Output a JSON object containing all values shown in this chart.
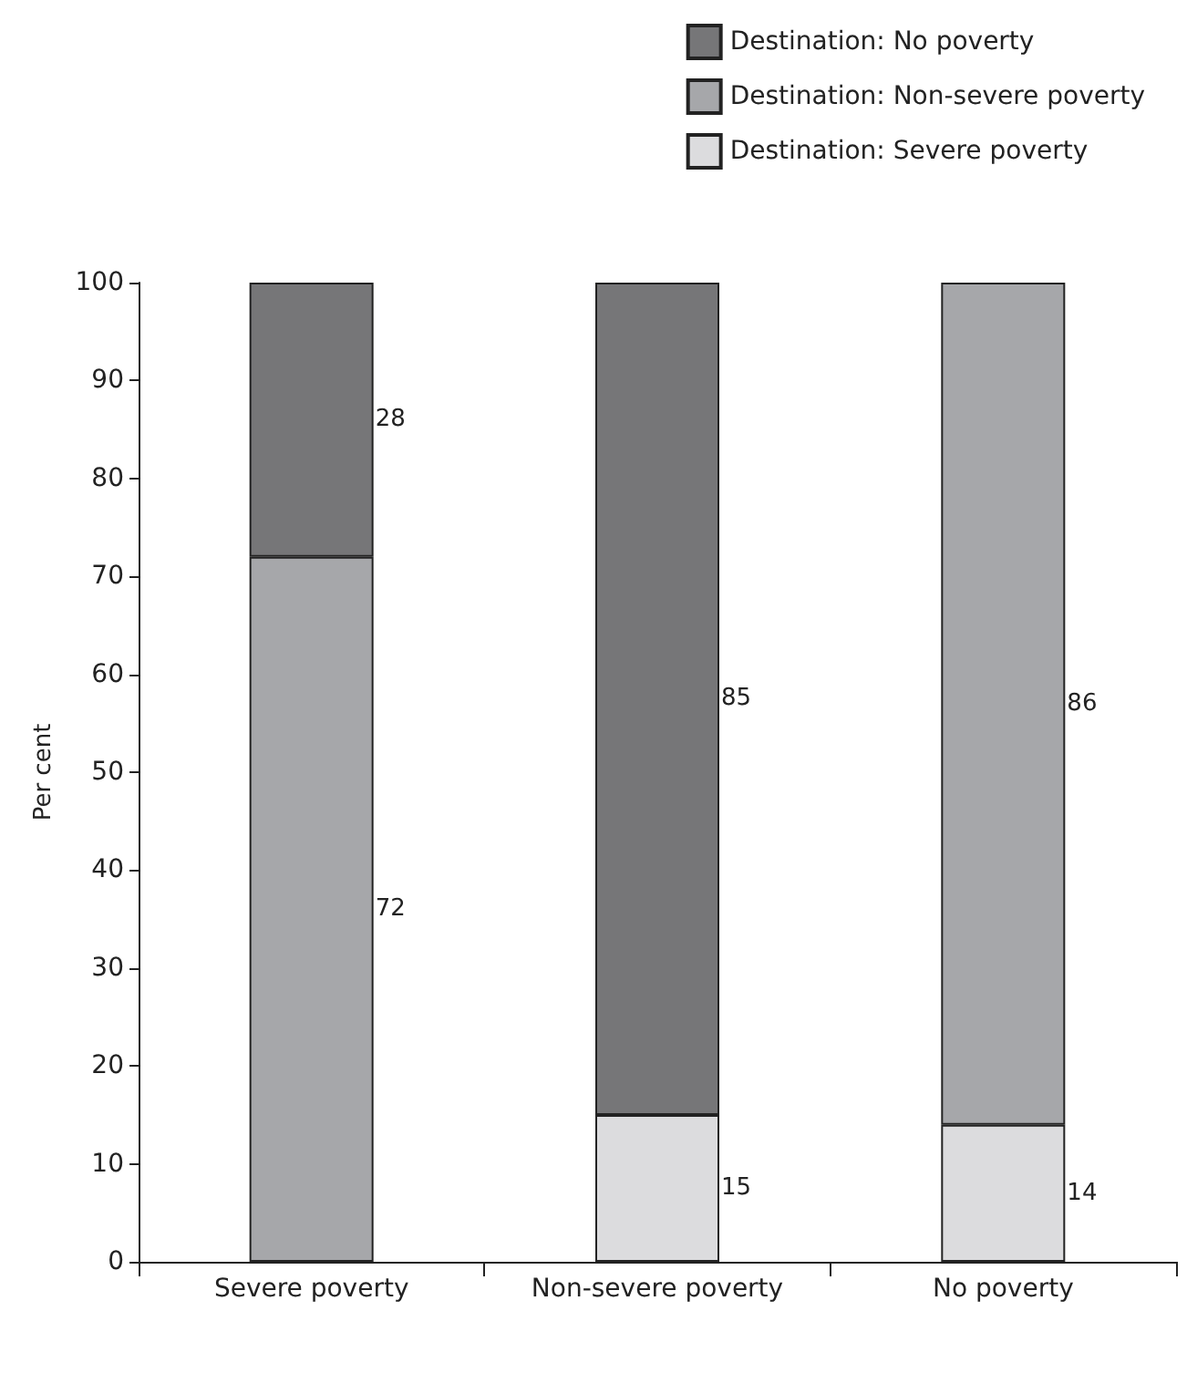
{
  "chart_data": {
    "type": "bar",
    "stacked": true,
    "ylabel": "Per cent",
    "categories": [
      "Severe poverty",
      "Non-severe poverty",
      "No poverty"
    ],
    "series": [
      {
        "name": "Destination: Severe poverty",
        "color": "#dcdcde",
        "values": [
          0,
          15,
          14
        ],
        "value_labels": [
          null,
          "15",
          "14"
        ]
      },
      {
        "name": "Destination: Non-severe poverty",
        "color": "#a6a7aa",
        "values": [
          72,
          0,
          86
        ],
        "value_labels": [
          "72",
          null,
          "86"
        ]
      },
      {
        "name": "Destination: No poverty",
        "color": "#767678",
        "values": [
          28,
          85,
          0
        ],
        "value_labels": [
          "28",
          "85",
          null
        ]
      }
    ],
    "ylim": [
      0,
      100
    ],
    "yticks": [
      0,
      10,
      20,
      30,
      40,
      50,
      60,
      70,
      80,
      90,
      100
    ],
    "grid": false,
    "legend": "top right"
  }
}
